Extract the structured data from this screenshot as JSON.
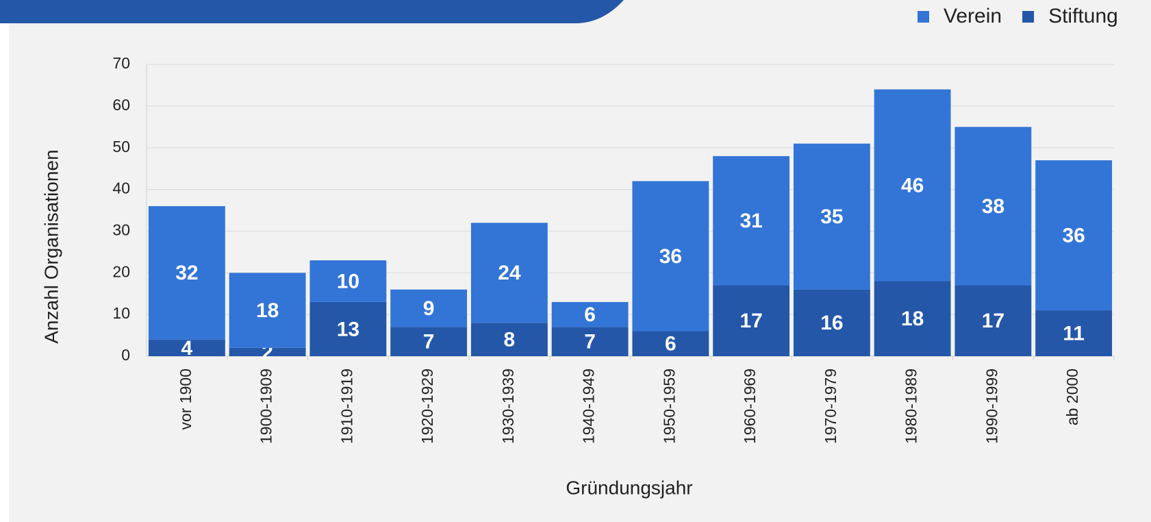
{
  "chart_data": {
    "type": "stacked_bar",
    "categories": [
      "vor 1900",
      "1900-1909",
      "1910-1919",
      "1920-1929",
      "1930-1939",
      "1940-1949",
      "1950-1959",
      "1960-1969",
      "1970-1979",
      "1980-1989",
      "1990-1999",
      "ab 2000"
    ],
    "series": [
      {
        "name": "Stiftung",
        "color": "#2457a8",
        "values": [
          4,
          2,
          13,
          7,
          8,
          7,
          6,
          17,
          16,
          18,
          17,
          11
        ]
      },
      {
        "name": "Verein",
        "color": "#3375d6",
        "values": [
          32,
          18,
          10,
          9,
          24,
          6,
          36,
          31,
          35,
          46,
          38,
          36
        ]
      }
    ],
    "ylabel": "Anzahl Organisationen",
    "xlabel": "Gründungsjahr",
    "ylim": [
      0,
      70
    ],
    "yticks": [
      0,
      10,
      20,
      30,
      40,
      50,
      60,
      70
    ],
    "grid": true,
    "legend": "top-right"
  }
}
